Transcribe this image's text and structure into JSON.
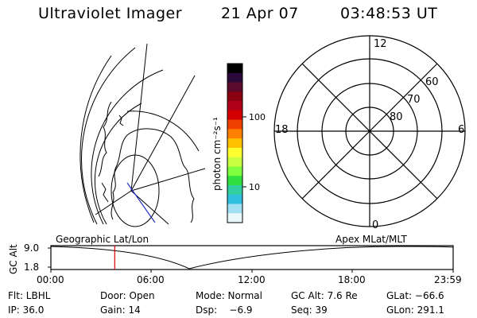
{
  "header": {
    "instrument": "Ultraviolet Imager",
    "date": "21 Apr 07",
    "time": "03:48:53 UT"
  },
  "colorbar": {
    "unit_label": "photon cm⁻²s⁻¹",
    "ticks": [
      "100",
      "10"
    ],
    "colors": [
      "#000000",
      "#2a0a3a",
      "#5a0a2a",
      "#8a0010",
      "#b00018",
      "#d40000",
      "#f04000",
      "#ff8000",
      "#ffc000",
      "#ffff30",
      "#c8ff40",
      "#80ff40",
      "#30e040",
      "#30d0a0",
      "#30c0e0",
      "#a0e0f0",
      "#e8f8fb"
    ]
  },
  "polar_plot": {
    "mlt_labels": {
      "top": "12",
      "left": "18",
      "right": "6",
      "bottom": "0"
    },
    "lat_labels": [
      "60",
      "70",
      "80"
    ]
  },
  "orbit_panel": {
    "left_label": "Geographic Lat/Lon",
    "right_label": "Apex MLat/MLT",
    "y_axis_label": "GC Alt",
    "y_ticks": [
      "9.0",
      "1.8"
    ],
    "x_ticks": [
      "00:00",
      "06:00",
      "12:00",
      "18:00",
      "23:59"
    ],
    "marker_hour": 3.81
  },
  "status": {
    "row1": {
      "filter": "Flt: LBHL",
      "door": "Door: Open",
      "mode": "Mode: Normal",
      "gc_alt": "GC Alt: 7.6 Re",
      "glat": "GLat: −66.6"
    },
    "row2": {
      "ip": "IP: 36.0",
      "gain": "Gain: 14",
      "dsp": "Dsp:    −6.9",
      "seq": "Seq: 39",
      "glon": "GLon: 291.1"
    }
  }
}
